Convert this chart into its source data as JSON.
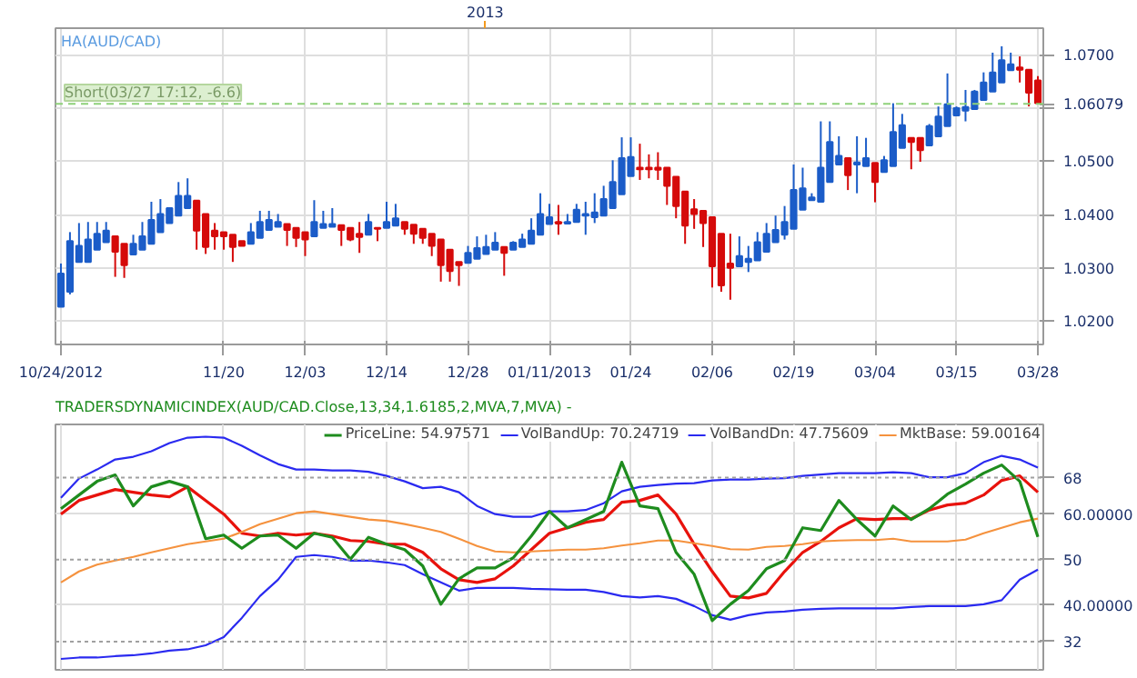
{
  "chart_data": [
    {
      "type": "candlestick",
      "title": "HA(AUD/CAD)",
      "annotations": [
        "2013",
        "Short(03/27 17:12, -6.6)"
      ],
      "categories": [
        "10/24/2012",
        null,
        null,
        null,
        null,
        null,
        null,
        null,
        null,
        null,
        null,
        null,
        null,
        null,
        null,
        null,
        null,
        null,
        "11/20",
        null,
        null,
        null,
        null,
        null,
        null,
        null,
        null,
        "12/03",
        null,
        null,
        null,
        null,
        null,
        null,
        null,
        null,
        "12/14",
        null,
        null,
        null,
        null,
        null,
        null,
        null,
        null,
        "12/28",
        null,
        null,
        null,
        null,
        null,
        null,
        null,
        null,
        "01/11/2013",
        null,
        null,
        null,
        null,
        null,
        null,
        null,
        null,
        "01/24",
        null,
        null,
        null,
        null,
        null,
        null,
        null,
        null,
        "02/06",
        null,
        null,
        null,
        null,
        null,
        null,
        null,
        null,
        "02/19",
        null,
        null,
        null,
        null,
        null,
        null,
        null,
        null,
        "03/04",
        null,
        null,
        null,
        null,
        null,
        null,
        null,
        null,
        "03/15",
        null,
        null,
        null,
        null,
        null,
        null,
        null,
        null,
        "03/28"
      ],
      "ohlc": [
        [
          1.0227,
          1.0308,
          1.0227,
          1.0289
        ],
        [
          1.0255,
          1.0367,
          1.025,
          1.035
        ],
        [
          1.0311,
          1.0384,
          1.0311,
          1.0341
        ],
        [
          1.0311,
          1.0386,
          1.0311,
          1.0353
        ],
        [
          1.0334,
          1.0386,
          1.0334,
          1.0364
        ],
        [
          1.0348,
          1.0386,
          1.0348,
          1.037
        ],
        [
          1.0359,
          1.0359,
          1.0283,
          1.033
        ],
        [
          1.0345,
          1.0345,
          1.0281,
          1.0305
        ],
        [
          1.0325,
          1.0362,
          1.0325,
          1.0345
        ],
        [
          1.0334,
          1.0386,
          1.0334,
          1.0359
        ],
        [
          1.0345,
          1.0424,
          1.0345,
          1.039
        ],
        [
          1.0367,
          1.0429,
          1.0367,
          1.0401
        ],
        [
          1.0384,
          1.0412,
          1.0384,
          1.0412
        ],
        [
          1.0398,
          1.0461,
          1.0398,
          1.0435
        ],
        [
          1.0412,
          1.0468,
          1.0412,
          1.0435
        ],
        [
          1.0426,
          1.0426,
          1.0334,
          1.037
        ],
        [
          1.0401,
          1.0401,
          1.0326,
          1.0339
        ],
        [
          1.037,
          1.0384,
          1.0334,
          1.0359
        ],
        [
          1.0367,
          1.0367,
          1.0334,
          1.0359
        ],
        [
          1.0362,
          1.0362,
          1.0311,
          1.0339
        ],
        [
          1.035,
          1.035,
          1.0341,
          1.0341
        ],
        [
          1.0345,
          1.0384,
          1.0345,
          1.0367
        ],
        [
          1.0356,
          1.0407,
          1.0356,
          1.0386
        ],
        [
          1.0371,
          1.0407,
          1.0371,
          1.039
        ],
        [
          1.0377,
          1.0401,
          1.0377,
          1.0386
        ],
        [
          1.0382,
          1.0382,
          1.0341,
          1.0371
        ],
        [
          1.0375,
          1.0375,
          1.0339,
          1.0356
        ],
        [
          1.0367,
          1.0367,
          1.0322,
          1.0353
        ],
        [
          1.0359,
          1.0427,
          1.0359,
          1.0386
        ],
        [
          1.0375,
          1.0407,
          1.0375,
          1.0382
        ],
        [
          1.0377,
          1.0412,
          1.0377,
          1.0382
        ],
        [
          1.038,
          1.038,
          1.0341,
          1.0371
        ],
        [
          1.0375,
          1.0375,
          1.035,
          1.0353
        ],
        [
          1.0364,
          1.0386,
          1.0328,
          1.0358
        ],
        [
          1.0362,
          1.0401,
          1.0362,
          1.0386
        ],
        [
          1.0375,
          1.0375,
          1.035,
          1.0373
        ],
        [
          1.0375,
          1.0424,
          1.0375,
          1.0386
        ],
        [
          1.0379,
          1.042,
          1.0379,
          1.0393
        ],
        [
          1.0386,
          1.0386,
          1.0362,
          1.0373
        ],
        [
          1.0381,
          1.0381,
          1.0345,
          1.0364
        ],
        [
          1.0373,
          1.0373,
          1.0345,
          1.0356
        ],
        [
          1.0364,
          1.0364,
          1.0322,
          1.0341
        ],
        [
          1.0353,
          1.0353,
          1.0274,
          1.0305
        ],
        [
          1.0334,
          1.0334,
          1.0274,
          1.0294
        ],
        [
          1.0311,
          1.0311,
          1.0266,
          1.0305
        ],
        [
          1.0309,
          1.0341,
          1.0309,
          1.0328
        ],
        [
          1.0317,
          1.0359,
          1.0317,
          1.0337
        ],
        [
          1.0326,
          1.0362,
          1.0326,
          1.0339
        ],
        [
          1.0334,
          1.0367,
          1.0334,
          1.0347
        ],
        [
          1.0339,
          1.0339,
          1.0285,
          1.0328
        ],
        [
          1.0334,
          1.035,
          1.0334,
          1.0347
        ],
        [
          1.0339,
          1.0364,
          1.0339,
          1.0353
        ],
        [
          1.0345,
          1.0393,
          1.0345,
          1.037
        ],
        [
          1.0362,
          1.044,
          1.0362,
          1.0401
        ],
        [
          1.0382,
          1.042,
          1.0382,
          1.0395
        ],
        [
          1.0386,
          1.0418,
          1.0362,
          1.0383
        ],
        [
          1.0383,
          1.0401,
          1.0383,
          1.0386
        ],
        [
          1.0386,
          1.042,
          1.0386,
          1.0409
        ],
        [
          1.0398,
          1.0424,
          1.0362,
          1.0401
        ],
        [
          1.0395,
          1.044,
          1.0384,
          1.0404
        ],
        [
          1.0398,
          1.0454,
          1.0398,
          1.0429
        ],
        [
          1.0412,
          1.0502,
          1.0412,
          1.0461
        ],
        [
          1.0438,
          1.0545,
          1.0438,
          1.0506
        ],
        [
          1.0472,
          1.0545,
          1.0472,
          1.0508
        ],
        [
          1.0488,
          1.0533,
          1.0465,
          1.0485
        ],
        [
          1.0488,
          1.0513,
          1.0468,
          1.0485
        ],
        [
          1.0488,
          1.0517,
          1.0465,
          1.0484
        ],
        [
          1.0488,
          1.0488,
          1.0418,
          1.0454
        ],
        [
          1.0471,
          1.0471,
          1.0393,
          1.0416
        ],
        [
          1.0443,
          1.0443,
          1.0345,
          1.0379
        ],
        [
          1.041,
          1.0429,
          1.0373,
          1.0401
        ],
        [
          1.0407,
          1.0407,
          1.0339,
          1.0384
        ],
        [
          1.0395,
          1.0395,
          1.0263,
          1.0303
        ],
        [
          1.0364,
          1.0364,
          1.0255,
          1.0267
        ],
        [
          1.0308,
          1.0364,
          1.024,
          1.03
        ],
        [
          1.0303,
          1.0359,
          1.0303,
          1.0322
        ],
        [
          1.0311,
          1.0341,
          1.0292,
          1.0317
        ],
        [
          1.0314,
          1.0367,
          1.0314,
          1.0348
        ],
        [
          1.033,
          1.0384,
          1.033,
          1.0364
        ],
        [
          1.0348,
          1.0398,
          1.0348,
          1.0371
        ],
        [
          1.0362,
          1.0416,
          1.0353,
          1.0386
        ],
        [
          1.0373,
          1.0494,
          1.0373,
          1.0446
        ],
        [
          1.0409,
          1.0488,
          1.0409,
          1.0449
        ],
        [
          1.0427,
          1.044,
          1.0427,
          1.0432
        ],
        [
          1.0424,
          1.0575,
          1.0424,
          1.0488
        ],
        [
          1.0461,
          1.0575,
          1.0461,
          1.0536
        ],
        [
          1.0494,
          1.0547,
          1.0494,
          1.051
        ],
        [
          1.0506,
          1.0506,
          1.0446,
          1.0474
        ],
        [
          1.0494,
          1.0547,
          1.044,
          1.0498
        ],
        [
          1.0491,
          1.0544,
          1.0491,
          1.0506
        ],
        [
          1.0497,
          1.0497,
          1.0423,
          1.0461
        ],
        [
          1.048,
          1.051,
          1.048,
          1.0502
        ],
        [
          1.0491,
          1.0609,
          1.0491,
          1.0555
        ],
        [
          1.0525,
          1.0589,
          1.0525,
          1.0568
        ],
        [
          1.0544,
          1.0544,
          1.0485,
          1.0536
        ],
        [
          1.0544,
          1.0544,
          1.0499,
          1.0521
        ],
        [
          1.053,
          1.057,
          1.053,
          1.0566
        ],
        [
          1.0547,
          1.0603,
          1.0547,
          1.0584
        ],
        [
          1.0566,
          1.0665,
          1.0566,
          1.0607
        ],
        [
          1.0586,
          1.0603,
          1.0586,
          1.06
        ],
        [
          1.0595,
          1.0634,
          1.0575,
          1.0602
        ],
        [
          1.0598,
          1.0634,
          1.0598,
          1.0631
        ],
        [
          1.0615,
          1.0667,
          1.0615,
          1.0648
        ],
        [
          1.0631,
          1.0704,
          1.0631,
          1.0667
        ],
        [
          1.0648,
          1.0716,
          1.0648,
          1.069
        ],
        [
          1.0671,
          1.0704,
          1.0671,
          1.0682
        ],
        [
          1.0676,
          1.0697,
          1.0648,
          1.0672
        ],
        [
          1.0672,
          1.0672,
          1.0603,
          1.0629
        ],
        [
          1.0652,
          1.066,
          1.0609,
          1.0609
        ]
      ],
      "colors": [
        "#1b5cc8",
        "#1b5cc8",
        "#1b5cc8",
        "#1b5cc8",
        "#1b5cc8",
        "#1b5cc8",
        "#d50a0a",
        "#d50a0a",
        "#1b5cc8",
        "#1b5cc8",
        "#1b5cc8",
        "#1b5cc8",
        "#1b5cc8",
        "#1b5cc8",
        "#1b5cc8",
        "#d50a0a",
        "#d50a0a",
        "#d50a0a",
        "#d50a0a",
        "#d50a0a",
        "#d50a0a",
        "#1b5cc8",
        "#1b5cc8",
        "#1b5cc8",
        "#1b5cc8",
        "#d50a0a",
        "#d50a0a",
        "#d50a0a",
        "#1b5cc8",
        "#1b5cc8",
        "#1b5cc8",
        "#d50a0a",
        "#d50a0a",
        "#d50a0a",
        "#1b5cc8",
        "#d50a0a",
        "#1b5cc8",
        "#1b5cc8",
        "#d50a0a",
        "#d50a0a",
        "#d50a0a",
        "#d50a0a",
        "#d50a0a",
        "#d50a0a",
        "#d50a0a",
        "#1b5cc8",
        "#1b5cc8",
        "#1b5cc8",
        "#1b5cc8",
        "#d50a0a",
        "#1b5cc8",
        "#1b5cc8",
        "#1b5cc8",
        "#1b5cc8",
        "#1b5cc8",
        "#d50a0a",
        "#1b5cc8",
        "#1b5cc8",
        "#1b5cc8",
        "#1b5cc8",
        "#1b5cc8",
        "#1b5cc8",
        "#1b5cc8",
        "#1b5cc8",
        "#d50a0a",
        "#d50a0a",
        "#d50a0a",
        "#d50a0a",
        "#d50a0a",
        "#d50a0a",
        "#d50a0a",
        "#d50a0a",
        "#d50a0a",
        "#d50a0a",
        "#d50a0a",
        "#1b5cc8",
        "#1b5cc8",
        "#1b5cc8",
        "#1b5cc8",
        "#1b5cc8",
        "#1b5cc8",
        "#1b5cc8",
        "#1b5cc8",
        "#1b5cc8",
        "#1b5cc8",
        "#1b5cc8",
        "#1b5cc8",
        "#d50a0a",
        "#1b5cc8",
        "#1b5cc8",
        "#d50a0a",
        "#1b5cc8",
        "#1b5cc8",
        "#1b5cc8",
        "#d50a0a",
        "#d50a0a",
        "#1b5cc8",
        "#1b5cc8",
        "#1b5cc8",
        "#1b5cc8",
        "#1b5cc8",
        "#1b5cc8",
        "#1b5cc8",
        "#1b5cc8",
        "#1b5cc8",
        "#1b5cc8",
        "#d50a0a",
        "#d50a0a",
        "#d50a0a"
      ],
      "ylim": [
        1.0156,
        1.075
      ],
      "yticks": [
        {
          "value": 1.02,
          "label": "1.0200"
        },
        {
          "value": 1.03,
          "label": "1.0300"
        },
        {
          "value": 1.04,
          "label": "1.0400"
        },
        {
          "value": 1.05,
          "label": "1.0500"
        },
        {
          "value": 1.06,
          "label": null
        },
        {
          "value": 1.07,
          "label": "1.0700"
        }
      ],
      "ref_lines": [
        {
          "axis": "y",
          "value": 1.06079,
          "label": "1.06079",
          "color": "#8fd17a",
          "line_style": "dashed"
        }
      ],
      "grid": true
    },
    {
      "type": "line",
      "title": "TRADERSDYNAMICINDEX(AUD/CAD.Close,13,34,1.6185,2,MVA,7,MVA) -",
      "categories": [
        null,
        null,
        null,
        null,
        null,
        null,
        null,
        null,
        null,
        null,
        null,
        null,
        null,
        null,
        null,
        null,
        null,
        null,
        null,
        null,
        null,
        null,
        null,
        null,
        null,
        null,
        null,
        null,
        null,
        null,
        null,
        null,
        null,
        null,
        null,
        null,
        null,
        null,
        null,
        null,
        null,
        null,
        null,
        null,
        null,
        null,
        null,
        null,
        null,
        null,
        null,
        null,
        null,
        null,
        null
      ],
      "series": [
        {
          "name": "PriceLine: 54.97571",
          "color": "#1e8c1e",
          "values": [
            61.2,
            64.2,
            67.2,
            68.6,
            61.8,
            66.0,
            67.2,
            66.0,
            54.6,
            55.4,
            52.5,
            55.2,
            55.4,
            52.5,
            55.8,
            54.9,
            50.1,
            54.9,
            53.4,
            52.2,
            48.6,
            40.2,
            45.8,
            48.2,
            48.2,
            50.4,
            55.2,
            60.6,
            57.0,
            58.8,
            60.6,
            71.4,
            61.8,
            61.2,
            51.6,
            46.8,
            36.6,
            40.2,
            43.2,
            48.0,
            49.8,
            57.0,
            56.4,
            63.0,
            58.8,
            55.2,
            61.8,
            58.8,
            61.2,
            64.4,
            66.6,
            69.0,
            70.8,
            67.2,
            55.0
          ]
        },
        {
          "name": "VolBandUp: 70.24719",
          "color": "#2a2af0",
          "values": [
            63.6,
            67.8,
            69.8,
            72.0,
            72.6,
            73.8,
            75.6,
            76.8,
            77.0,
            76.8,
            75.0,
            72.9,
            71.0,
            69.8,
            69.8,
            69.6,
            69.6,
            69.3,
            68.4,
            67.2,
            65.7,
            66.0,
            64.8,
            61.8,
            60.0,
            59.4,
            59.4,
            60.6,
            60.6,
            60.9,
            62.4,
            65.0,
            66.0,
            66.4,
            66.7,
            66.8,
            67.4,
            67.6,
            67.6,
            67.8,
            67.9,
            68.4,
            68.7,
            69.0,
            69.0,
            69.0,
            69.2,
            69.0,
            68.1,
            68.1,
            69.0,
            71.4,
            72.8,
            72.0,
            70.2
          ]
        },
        {
          "name": "VolBandDn: 47.75609",
          "color": "#2a2af0",
          "values": [
            28.2,
            28.5,
            28.5,
            28.8,
            29.0,
            29.4,
            30.0,
            30.3,
            31.2,
            33.0,
            37.2,
            42.0,
            45.6,
            50.6,
            51.0,
            50.6,
            49.8,
            49.8,
            49.4,
            48.8,
            46.8,
            45.0,
            43.2,
            43.8,
            43.8,
            43.8,
            43.6,
            43.5,
            43.4,
            43.4,
            42.9,
            42.0,
            41.7,
            42.0,
            41.4,
            39.8,
            37.8,
            36.8,
            37.8,
            38.4,
            38.6,
            39.0,
            39.2,
            39.3,
            39.3,
            39.3,
            39.3,
            39.6,
            39.8,
            39.8,
            39.8,
            40.2,
            41.1,
            45.6,
            47.8
          ]
        },
        {
          "name": "MktBase: 59.00164",
          "color": "#f5923e",
          "values": [
            45.0,
            47.4,
            48.9,
            49.8,
            50.6,
            51.6,
            52.5,
            53.4,
            54.0,
            54.6,
            56.1,
            57.8,
            59.0,
            60.2,
            60.6,
            60.0,
            59.4,
            58.8,
            58.5,
            57.8,
            57.0,
            56.1,
            54.6,
            53.0,
            51.8,
            51.6,
            51.8,
            52.0,
            52.2,
            52.2,
            52.5,
            53.1,
            53.6,
            54.2,
            54.2,
            53.6,
            53.0,
            52.3,
            52.2,
            52.8,
            53.0,
            53.4,
            54.0,
            54.2,
            54.3,
            54.3,
            54.6,
            54.0,
            54.0,
            54.0,
            54.4,
            55.8,
            57.0,
            58.2,
            59.0
          ]
        },
        {
          "color": "#e8120c",
          "values": [
            60.0,
            63.0,
            64.2,
            65.4,
            64.8,
            64.2,
            63.8,
            66.0,
            63.0,
            60.0,
            55.8,
            55.2,
            55.8,
            55.4,
            55.8,
            55.2,
            54.2,
            54.0,
            53.4,
            53.4,
            51.6,
            48.0,
            45.6,
            45.0,
            45.8,
            48.6,
            52.2,
            55.8,
            57.0,
            58.2,
            58.8,
            62.6,
            63.0,
            64.2,
            60.0,
            53.4,
            47.4,
            42.0,
            41.6,
            42.6,
            47.4,
            51.6,
            54.0,
            57.0,
            59.0,
            58.8,
            59.0,
            59.0,
            60.9,
            62.0,
            62.4,
            64.2,
            67.4,
            68.4,
            64.8
          ]
        }
      ],
      "ylim": [
        25.8,
        79.7
      ],
      "yticks": [
        {
          "value": 60,
          "label": "60.00000"
        },
        {
          "value": 40,
          "label": "40.00000"
        }
      ],
      "ref_lines": [
        {
          "axis": "y",
          "value": 68,
          "label": "68",
          "color": "#a0a0a0",
          "line_style": "dotted"
        },
        {
          "axis": "y",
          "value": 50,
          "label": "50",
          "color": "#a0a0a0",
          "line_style": "dotted"
        },
        {
          "axis": "y",
          "value": 32,
          "label": "32",
          "color": "#a0a0a0",
          "line_style": "dotted"
        }
      ],
      "grid": true,
      "legend": "top right",
      "tick_labels": "y"
    }
  ]
}
